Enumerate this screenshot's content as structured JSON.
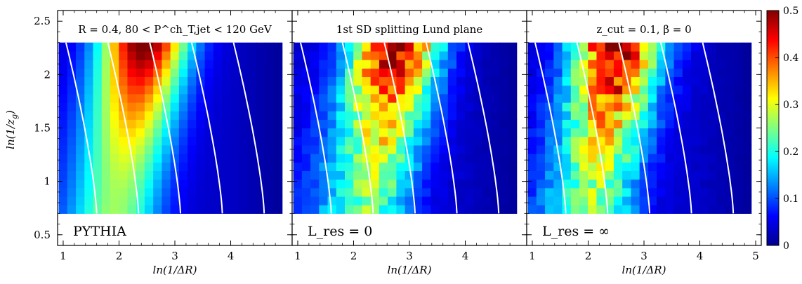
{
  "figure": {
    "ylabel": "ln(1/z",
    "ylabel_sub": "g",
    "ylabel_close": ")",
    "xlabel": "ln(1/ΔR)"
  },
  "colors": {
    "colormap": [
      "#00008f",
      "#0000ff",
      "#0080ff",
      "#00ffff",
      "#80ff80",
      "#ffff00",
      "#ff8000",
      "#ff0000",
      "#800000"
    ],
    "contour": "#ffffff",
    "frame": "#000000"
  },
  "chart_data": [
    {
      "type": "heatmap",
      "title": "R = 0.4, 80 < P^ch_T,jet < 120 GeV",
      "tag": "PYTHIA",
      "xlabel": "ln(1/ΔR)",
      "ylabel": "ln(1/z_g)",
      "xlim": [
        0.9,
        5.1
      ],
      "ylim": [
        0.4,
        2.6
      ],
      "x_ticks": [
        1,
        2,
        3,
        4
      ],
      "y_ticks": [
        0.5,
        1,
        1.5,
        2,
        2.5
      ],
      "grid": {
        "x_range": [
          0.92,
          4.92
        ],
        "y_range": [
          0.7,
          2.3
        ],
        "nx": 26,
        "ny": 20
      },
      "peak": {
        "x": 2.45,
        "y": 2.3
      },
      "noise": 0.0,
      "contours_x_at_bottom": [
        1.6,
        2.35,
        3.1,
        3.85,
        4.6
      ]
    },
    {
      "type": "heatmap",
      "title": "1st SD splitting Lund plane",
      "tag": "L_res = 0",
      "xlabel": "ln(1/ΔR)",
      "ylabel": "",
      "xlim": [
        0.9,
        5.1
      ],
      "ylim": [
        0.4,
        2.6
      ],
      "x_ticks": [
        1,
        2,
        3,
        4
      ],
      "y_ticks": [
        0.5,
        1,
        1.5,
        2,
        2.5
      ],
      "grid": {
        "x_range": [
          0.92,
          4.92
        ],
        "y_range": [
          0.7,
          2.3
        ],
        "nx": 26,
        "ny": 20
      },
      "peak": {
        "x": 2.75,
        "y": 2.3
      },
      "noise": 0.12,
      "contours_x_at_bottom": [
        1.6,
        2.35,
        3.1,
        3.85,
        4.6
      ]
    },
    {
      "type": "heatmap",
      "title": "z_cut = 0.1, β = 0",
      "tag": "L_res = ∞",
      "xlabel": "ln(1/ΔR)",
      "ylabel": "",
      "xlim": [
        0.9,
        5.1
      ],
      "ylim": [
        0.4,
        2.6
      ],
      "x_ticks": [
        1,
        2,
        3,
        4,
        5
      ],
      "y_ticks": [
        0.5,
        1,
        1.5,
        2,
        2.5
      ],
      "grid": {
        "x_range": [
          0.92,
          4.92
        ],
        "y_range": [
          0.7,
          2.3
        ],
        "nx": 26,
        "ny": 20
      },
      "peak": {
        "x": 2.55,
        "y": 2.3
      },
      "noise": 0.12,
      "contours_x_at_bottom": [
        1.6,
        2.35,
        3.1,
        3.85,
        4.6
      ]
    }
  ],
  "colorbar": {
    "range": [
      0,
      0.5
    ],
    "ticks": [
      "0",
      "0.1",
      "0.2",
      "0.3",
      "0.4",
      "0.5"
    ]
  }
}
